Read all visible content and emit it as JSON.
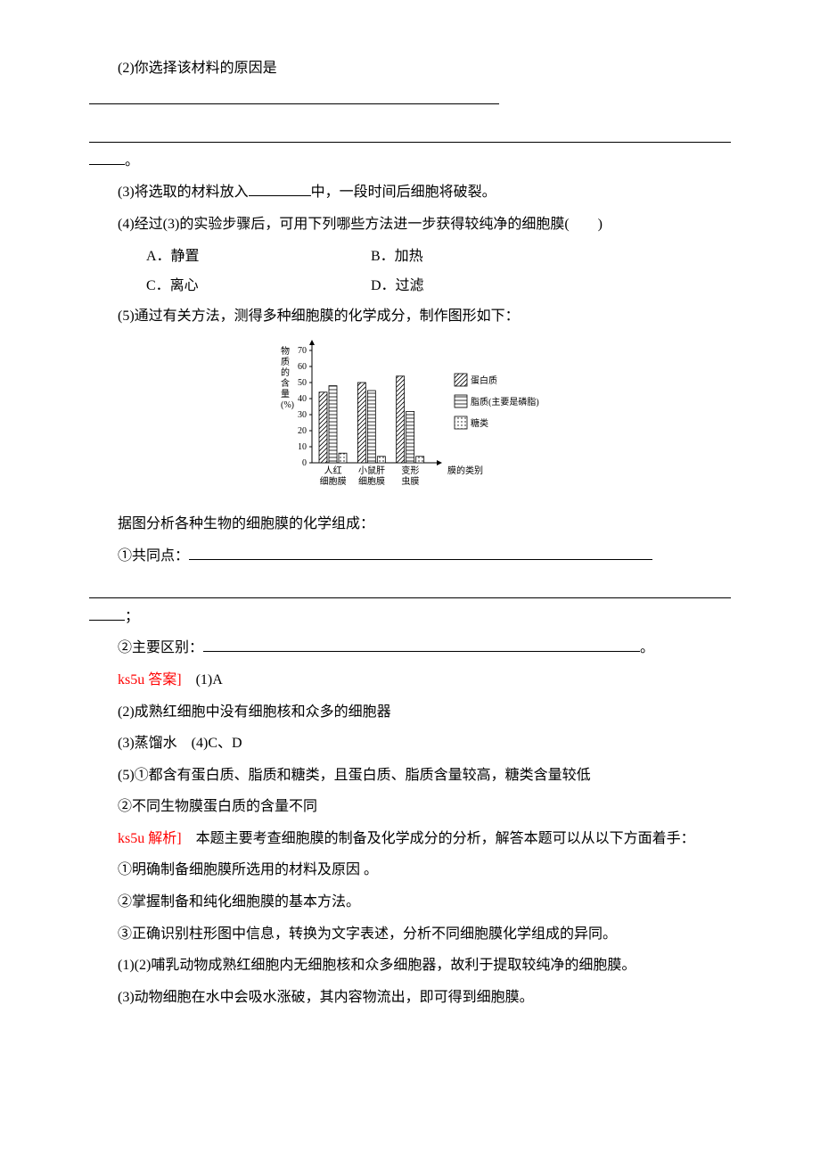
{
  "q2": "(2)你选择该材料的原因是",
  "q2_tail": "。",
  "q3_a": "(3)将选取的材料放入",
  "q3_b": "中，一段时间后细胞将破裂。",
  "q4": "(4)经过(3)的实验步骤后，可用下列哪些方法进一步获得较纯净的细胞膜(　　)",
  "optA": "A．静置",
  "optB": "B．加热",
  "optC": "C．离心",
  "optD": "D．过滤",
  "q5": "(5)通过有关方法，测得多种细胞膜的化学成分，制作图形如下：",
  "chart": {
    "type": "bar",
    "ylabel_chars": [
      "物",
      "质",
      "的",
      "含",
      "量",
      "(%)"
    ],
    "ylim": [
      0,
      70
    ],
    "yticks": [
      0,
      10,
      20,
      30,
      40,
      50,
      60,
      70
    ],
    "categories_l1": [
      "人红",
      "小鼠肝",
      "变形"
    ],
    "categories_l2": [
      "细胞膜",
      "细胞膜",
      "虫膜"
    ],
    "xlabel_right": "膜的类别",
    "series": [
      {
        "name": "蛋白质",
        "values": [
          44,
          50,
          54
        ],
        "fill": "#ffffff",
        "pattern": "diag"
      },
      {
        "name": "脂质(主要是磷脂)",
        "values": [
          48,
          45,
          32
        ],
        "fill": "#ffffff",
        "pattern": "horiz"
      },
      {
        "name": "糖类",
        "values": [
          6,
          4,
          4
        ],
        "fill": "#ffffff",
        "pattern": "dots"
      }
    ],
    "legend": [
      "蛋白质",
      "脂质(主要是磷脂)",
      "糖类"
    ],
    "font_size": 10,
    "axis_color": "#000000",
    "grid_color": "#000000",
    "legend_box_size": 14
  },
  "after_chart_line": "据图分析各种生物的细胞膜的化学组成：",
  "p1_label": "①共同点：",
  "p1_tail": "；",
  "p2_label": "②主要区别：",
  "p2_tail": "。",
  "ans_label": "ks5u 答案]",
  "ans_1": "　(1)A",
  "ans_2": "(2)成熟红细胞中没有细胞核和众多的细胞器",
  "ans_3": "(3)蒸馏水　(4)C、D",
  "ans_5a": "(5)①都含有蛋白质、脂质和糖类，且蛋白质、脂质含量较高，糖类含量较低",
  "ans_5b": "②不同生物膜蛋白质的含量不同",
  "exp_label": "ks5u 解析]",
  "exp_0": "　本题主要考查细胞膜的制备及化学成分的分析，解答本题可以从以下方面着手：",
  "exp_1": "①明确制备细胞膜所选用的材料及原因 。",
  "exp_2": "②掌握制备和纯化细胞膜的基本方法。",
  "exp_3": "③正确识别柱形图中信息，转换为文字表述，分析不同细胞膜化学组成的异同。",
  "exp_12": "(1)(2)哺乳动物成熟红细胞内无细胞核和众多细胞器，故利于提取较纯净的细胞膜。",
  "exp_3b": "(3)动物细胞在水中会吸水涨破，其内容物流出，即可得到细胞膜。"
}
